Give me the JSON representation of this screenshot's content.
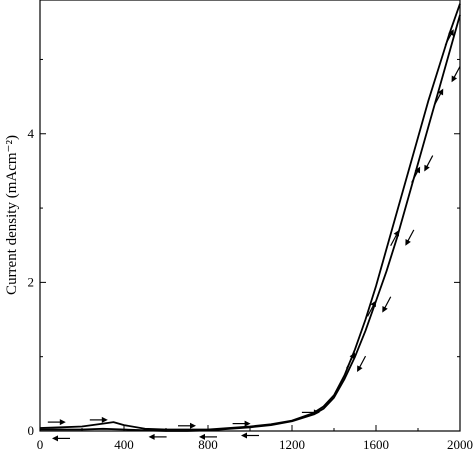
{
  "chart_data": {
    "type": "line",
    "ylabel": "Current density (mAcm⁻²)",
    "xlim": [
      0,
      2000
    ],
    "ylim": [
      0,
      5.8
    ],
    "x_ticks": [
      {
        "value": 0,
        "label": "0"
      },
      {
        "value": 400,
        "label": "400"
      },
      {
        "value": 800,
        "label": "800"
      },
      {
        "value": 1200,
        "label": "1200"
      },
      {
        "value": 1600,
        "label": "1600"
      },
      {
        "value": 2000,
        "label": "2000"
      }
    ],
    "y_ticks": [
      {
        "value": 0,
        "label": "0"
      },
      {
        "value": 2,
        "label": "2"
      },
      {
        "value": 4,
        "label": "4"
      }
    ],
    "grid": false,
    "legend": "none",
    "line_color": "#000000",
    "series": [
      {
        "direction": "forward",
        "x": [
          0,
          100,
          200,
          300,
          350,
          400,
          500,
          600,
          700,
          800,
          900,
          1000,
          1100,
          1200,
          1300,
          1350,
          1400,
          1450,
          1500,
          1550,
          1600,
          1650,
          1700,
          1750,
          1800,
          1850,
          1900,
          1950,
          2000
        ],
        "y": [
          0.04,
          0.05,
          0.06,
          0.1,
          0.12,
          0.08,
          0.03,
          0.02,
          0.02,
          0.02,
          0.04,
          0.06,
          0.09,
          0.14,
          0.24,
          0.33,
          0.48,
          0.75,
          1.1,
          1.5,
          1.95,
          2.45,
          2.95,
          3.45,
          3.95,
          4.45,
          4.9,
          5.35,
          5.75
        ]
      },
      {
        "direction": "reverse",
        "x": [
          2000,
          1950,
          1900,
          1850,
          1800,
          1750,
          1700,
          1650,
          1600,
          1550,
          1500,
          1450,
          1400,
          1350,
          1300,
          1200,
          1100,
          1000,
          900,
          800,
          700,
          600,
          500,
          400,
          300,
          200,
          100,
          0
        ],
        "y": [
          5.6,
          5.1,
          4.6,
          4.1,
          3.6,
          3.1,
          2.6,
          2.15,
          1.75,
          1.35,
          1.0,
          0.7,
          0.45,
          0.3,
          0.22,
          0.13,
          0.08,
          0.05,
          0.03,
          0.01,
          0.0,
          0.0,
          0.01,
          0.02,
          0.03,
          0.02,
          0.02,
          0.02
        ]
      }
    ],
    "direction_arrows": [
      {
        "x": 80,
        "y": 0.12,
        "dir": "right"
      },
      {
        "x": 280,
        "y": 0.15,
        "dir": "right"
      },
      {
        "x": 700,
        "y": 0.07,
        "dir": "right"
      },
      {
        "x": 960,
        "y": 0.1,
        "dir": "right"
      },
      {
        "x": 1290,
        "y": 0.25,
        "dir": "right"
      },
      {
        "x": 100,
        "y": -0.1,
        "dir": "left"
      },
      {
        "x": 560,
        "y": -0.08,
        "dir": "left"
      },
      {
        "x": 800,
        "y": -0.08,
        "dir": "left"
      },
      {
        "x": 1000,
        "y": -0.06,
        "dir": "left"
      },
      {
        "x": 1480,
        "y": 0.95,
        "dir": "up"
      },
      {
        "x": 1580,
        "y": 1.65,
        "dir": "up"
      },
      {
        "x": 1690,
        "y": 2.6,
        "dir": "up"
      },
      {
        "x": 1790,
        "y": 3.45,
        "dir": "up"
      },
      {
        "x": 1900,
        "y": 4.5,
        "dir": "up"
      },
      {
        "x": 1950,
        "y": 5.3,
        "dir": "up"
      },
      {
        "x": 1530,
        "y": 0.9,
        "dir": "down"
      },
      {
        "x": 1650,
        "y": 1.7,
        "dir": "down"
      },
      {
        "x": 1760,
        "y": 2.6,
        "dir": "down"
      },
      {
        "x": 1850,
        "y": 3.6,
        "dir": "down"
      },
      {
        "x": 1980,
        "y": 4.8,
        "dir": "down"
      }
    ]
  }
}
